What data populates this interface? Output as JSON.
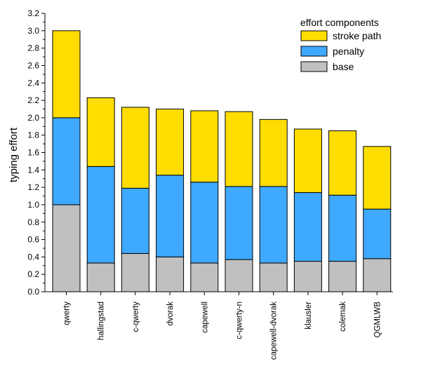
{
  "chart_data": {
    "type": "bar",
    "stacked": true,
    "ylabel": "typing effort",
    "xlabel": "",
    "ylim": [
      0,
      3.2
    ],
    "ytick_step": 0.2,
    "grid": false,
    "legend": {
      "title": "effort components",
      "placement": "top-right",
      "order": [
        "stroke path",
        "penalty",
        "base"
      ]
    },
    "categories": [
      "qwerty",
      "hallingstad",
      "c-qwerty",
      "dvorak",
      "capewell",
      "c-qwerty-n",
      "capewell-dvorak",
      "klausler",
      "colemak",
      "QGMLWB"
    ],
    "series": [
      {
        "name": "base",
        "color": "#c0c0c0",
        "values": [
          1.0,
          0.33,
          0.44,
          0.4,
          0.33,
          0.37,
          0.33,
          0.35,
          0.35,
          0.38
        ]
      },
      {
        "name": "penalty",
        "color": "#3fa9ff",
        "values": [
          1.0,
          1.11,
          0.75,
          0.94,
          0.93,
          0.84,
          0.88,
          0.79,
          0.76,
          0.57
        ]
      },
      {
        "name": "stroke path",
        "color": "#ffdd00",
        "values": [
          1.0,
          0.79,
          0.93,
          0.76,
          0.82,
          0.86,
          0.77,
          0.73,
          0.74,
          0.72
        ]
      }
    ]
  }
}
